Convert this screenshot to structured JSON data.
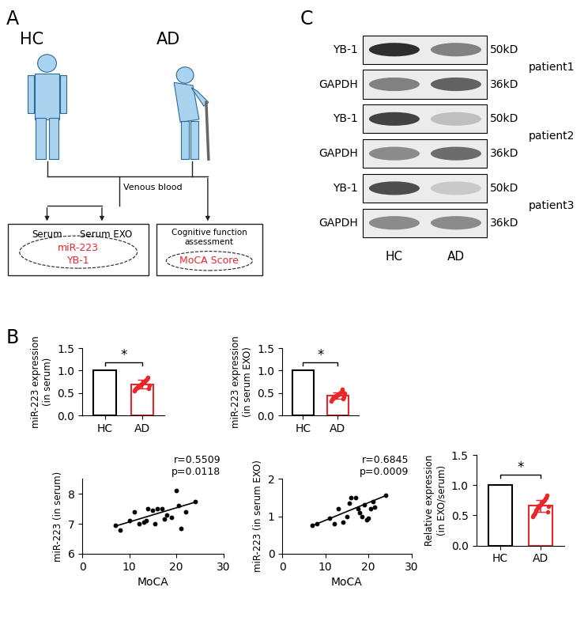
{
  "panel_labels": [
    "A",
    "B",
    "C"
  ],
  "diagram": {
    "groups": [
      "HC",
      "AD"
    ],
    "edge_label": "Venous blood",
    "left_box": {
      "items": [
        "Serum",
        "Serum EXO"
      ],
      "measures": [
        "miR-223",
        "YB-1"
      ]
    },
    "right_box": {
      "title": "Cognitive function\nassessment",
      "measure": "MoCA Score"
    }
  },
  "chart_data": [
    {
      "type": "bar",
      "ylabel": "miR-223 expression\n(in serum)",
      "categories": [
        "HC",
        "AD"
      ],
      "values": [
        1.0,
        0.7
      ],
      "errors": [
        0,
        0.09
      ],
      "colors": [
        "#000000",
        "#e8262b"
      ],
      "points": [
        null,
        [
          0.55,
          0.58,
          0.6,
          0.62,
          0.63,
          0.65,
          0.66,
          0.68,
          0.7,
          0.7,
          0.72,
          0.73,
          0.75,
          0.76,
          0.78,
          0.8,
          0.82,
          0.85,
          0.6,
          0.68
        ]
      ],
      "ylim": [
        0,
        1.5
      ],
      "yticks": [
        {
          "value": 0,
          "label": "0.0"
        },
        {
          "value": 0.5,
          "label": "0.5"
        },
        {
          "value": 1.0,
          "label": "1.0"
        },
        {
          "value": 1.5,
          "label": "1.5"
        }
      ],
      "significance": "*"
    },
    {
      "type": "bar",
      "ylabel": "miR-223 expression\n(in serum EXO)",
      "categories": [
        "HC",
        "AD"
      ],
      "values": [
        1.0,
        0.45
      ],
      "errors": [
        0,
        0.07
      ],
      "colors": [
        "#000000",
        "#e8262b"
      ],
      "points": [
        null,
        [
          0.32,
          0.35,
          0.37,
          0.39,
          0.4,
          0.42,
          0.43,
          0.44,
          0.45,
          0.46,
          0.47,
          0.48,
          0.5,
          0.52,
          0.53,
          0.55,
          0.58,
          0.38,
          0.41,
          0.49
        ]
      ],
      "ylim": [
        0,
        1.5
      ],
      "yticks": [
        {
          "value": 0,
          "label": "0.0"
        },
        {
          "value": 0.5,
          "label": "0.5"
        },
        {
          "value": 1.0,
          "label": "1.0"
        },
        {
          "value": 1.5,
          "label": "1.5"
        }
      ],
      "significance": "*"
    },
    {
      "type": "bar",
      "ylabel": "Relative expression\n(in EXO/serum)",
      "categories": [
        "HC",
        "AD"
      ],
      "values": [
        1.0,
        0.66
      ],
      "errors": [
        0,
        0.1
      ],
      "colors": [
        "#000000",
        "#e8262b"
      ],
      "points": [
        null,
        [
          0.48,
          0.5,
          0.52,
          0.55,
          0.58,
          0.6,
          0.62,
          0.64,
          0.66,
          0.67,
          0.68,
          0.7,
          0.72,
          0.74,
          0.76,
          0.78,
          0.8,
          0.84,
          0.56,
          0.65
        ]
      ],
      "ylim": [
        0,
        1.5
      ],
      "yticks": [
        {
          "value": 0,
          "label": "0.0"
        },
        {
          "value": 0.5,
          "label": "0.5"
        },
        {
          "value": 1.0,
          "label": "1.0"
        },
        {
          "value": 1.5,
          "label": "1.5"
        }
      ],
      "significance": "*"
    },
    {
      "type": "scatter",
      "xlabel": "MoCA",
      "ylabel": "miR-223 (in serum)",
      "color": "#000000",
      "x": [
        7,
        8,
        10,
        11,
        12,
        13,
        14,
        15,
        15.5,
        16,
        17,
        18,
        19,
        20,
        20.5,
        21,
        22,
        24,
        13.5,
        17.5
      ],
      "y": [
        6.95,
        6.8,
        7.1,
        7.4,
        7.0,
        7.05,
        7.5,
        7.45,
        7.0,
        7.5,
        7.5,
        7.3,
        7.2,
        8.1,
        7.6,
        6.85,
        7.4,
        7.75,
        7.1,
        7.15
      ],
      "xlim": [
        0,
        30
      ],
      "xticks": [
        0,
        10,
        20,
        30
      ],
      "ylim": [
        6,
        8.5
      ],
      "yticks": [
        6,
        7,
        8
      ],
      "annotation": "r=0.5509\np=0.0118",
      "fit_line": {
        "x": [
          7,
          24
        ],
        "y": [
          6.92,
          7.72
        ]
      }
    },
    {
      "type": "scatter",
      "xlabel": "MoCA",
      "ylabel": "miR-223 (in serum EXO)",
      "color": "#000000",
      "x": [
        7,
        8,
        11,
        12,
        13,
        14,
        15,
        15.5,
        16,
        17,
        17.5,
        18,
        19,
        19.5,
        20,
        20.5,
        21,
        21.5,
        24,
        18.5
      ],
      "y": [
        0.75,
        0.8,
        0.95,
        0.8,
        1.2,
        0.85,
        1.0,
        1.35,
        1.5,
        1.5,
        1.2,
        1.1,
        1.3,
        0.9,
        0.95,
        1.2,
        1.4,
        1.25,
        1.55,
        1.0
      ],
      "xlim": [
        0,
        30
      ],
      "xticks": [
        0,
        10,
        20,
        30
      ],
      "ylim": [
        0,
        2
      ],
      "yticks": [
        0,
        1,
        2
      ],
      "annotation": "r=0.6845\np=0.0009",
      "fit_line": {
        "x": [
          7,
          24
        ],
        "y": [
          0.75,
          1.55
        ]
      }
    }
  ],
  "blot": {
    "columns": [
      "HC",
      "AD"
    ],
    "patients": [
      {
        "name": "patient1",
        "rows": [
          {
            "protein": "YB-1",
            "size": "50kD",
            "intensity": [
              1.0,
              0.6
            ]
          },
          {
            "protein": "GAPDH",
            "size": "36kD",
            "intensity": [
              0.6,
              0.75
            ]
          }
        ]
      },
      {
        "name": "patient2",
        "rows": [
          {
            "protein": "YB-1",
            "size": "50kD",
            "intensity": [
              0.9,
              0.3
            ]
          },
          {
            "protein": "GAPDH",
            "size": "36kD",
            "intensity": [
              0.55,
              0.7
            ]
          }
        ]
      },
      {
        "name": "patient3",
        "rows": [
          {
            "protein": "YB-1",
            "size": "50kD",
            "intensity": [
              0.85,
              0.25
            ]
          },
          {
            "protein": "GAPDH",
            "size": "36kD",
            "intensity": [
              0.55,
              0.55
            ]
          }
        ]
      }
    ]
  }
}
